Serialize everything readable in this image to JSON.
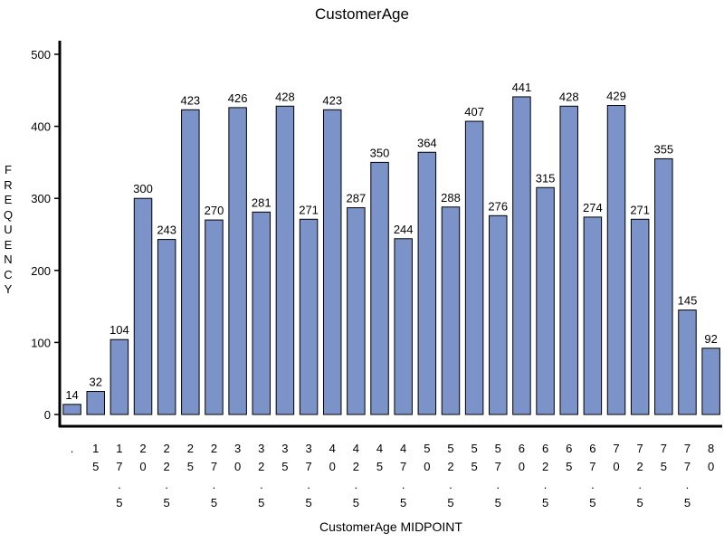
{
  "chart_data": {
    "type": "bar",
    "title": "CustomerAge",
    "xlabel": "CustomerAge MIDPOINT",
    "ylabel": "FREQUENCY",
    "ylim": [
      0,
      500
    ],
    "yticks": [
      "0",
      "100",
      "200",
      "300",
      "400",
      "500"
    ],
    "ytick_values": [
      0,
      100,
      200,
      300,
      400,
      500
    ],
    "grid": false,
    "categories": [
      ".",
      "15",
      "17.5",
      "20",
      "22.5",
      "25",
      "27.5",
      "30",
      "32.5",
      "35",
      "37.5",
      "40",
      "42.5",
      "45",
      "47.5",
      "50",
      "52.5",
      "55",
      "57.5",
      "60",
      "62.5",
      "65",
      "67.5",
      "70",
      "72.5",
      "75",
      "77.5",
      "80"
    ],
    "values": [
      14,
      32,
      104,
      300,
      243,
      423,
      270,
      426,
      281,
      428,
      271,
      423,
      287,
      350,
      244,
      364,
      288,
      407,
      276,
      441,
      315,
      428,
      274,
      429,
      271,
      355,
      145,
      92
    ],
    "bar_color": "#7b93c9",
    "bar_edge_color": "#000000"
  }
}
